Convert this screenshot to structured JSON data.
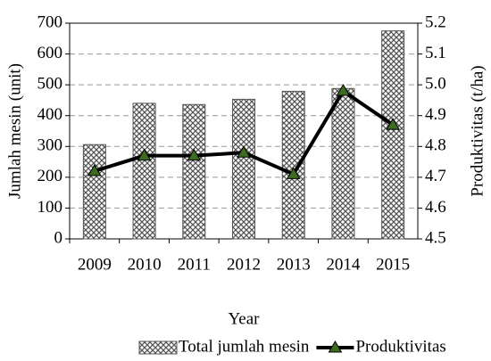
{
  "chart_data": {
    "type": "bar",
    "y_label": "Jumlah mesin (unit)",
    "y2_label": "Produktivitas (t/ha)",
    "x_label": "Year",
    "categories": [
      "2009",
      "2010",
      "2011",
      "2012",
      "2013",
      "2014",
      "2015"
    ],
    "series": [
      {
        "name": "Total jumlah mesin",
        "type": "bar",
        "color": "#555555",
        "values": [
          306,
          440,
          436,
          453,
          479,
          488,
          675
        ]
      },
      {
        "name": "Produktivitas",
        "type": "line",
        "axis": "y2",
        "color": "#000000",
        "marker_color": "#3d6b1f",
        "values": [
          4.72,
          4.77,
          4.77,
          4.78,
          4.71,
          4.98,
          4.87
        ]
      }
    ],
    "ylim": [
      0,
      700
    ],
    "yticks": [
      0,
      100,
      200,
      300,
      400,
      500,
      600,
      700
    ],
    "y2lim": [
      4.5,
      5.2
    ],
    "y2ticks": [
      4.5,
      4.6,
      4.7,
      4.8,
      4.9,
      {
        "value": 5,
        "label": "5.0"
      },
      5.1,
      5.2
    ],
    "grid": true,
    "legend": "bottom"
  }
}
